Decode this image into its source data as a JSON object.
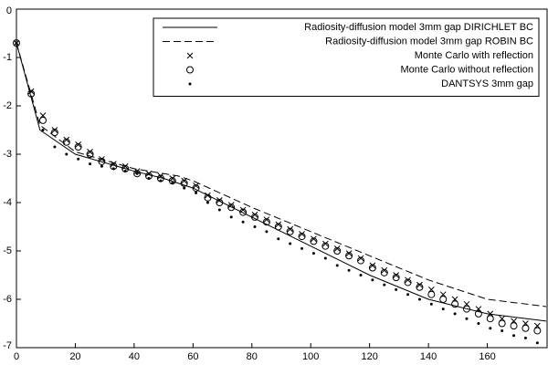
{
  "chart_data": {
    "type": "line",
    "xlim": [
      0,
      180
    ],
    "ylim": [
      -7,
      0
    ],
    "xticks": [
      0,
      20,
      40,
      60,
      80,
      100,
      120,
      140,
      160
    ],
    "yticks": [
      0,
      -1,
      -2,
      -3,
      -4,
      -5,
      -6,
      -7
    ],
    "legend": "upper right",
    "series": [
      {
        "name": "Radiosity-diffusion model 3mm gap DIRICHLET BC",
        "color": "#000000",
        "style": "solid",
        "x": [
          0,
          8,
          20,
          40,
          50,
          60,
          80,
          100,
          120,
          140,
          160,
          180
        ],
        "values": [
          -0.7,
          -2.5,
          -3.0,
          -3.35,
          -3.5,
          -3.7,
          -4.3,
          -4.9,
          -5.5,
          -6.0,
          -6.3,
          -6.45
        ]
      },
      {
        "name": "Radiosity-diffusion model 3mm gap ROBIN BC",
        "color": "#000000",
        "style": "dashed",
        "x": [
          0,
          8,
          20,
          40,
          55,
          60,
          80,
          100,
          120,
          140,
          160,
          180
        ],
        "values": [
          -0.7,
          -2.4,
          -2.95,
          -3.3,
          -3.45,
          -3.55,
          -4.1,
          -4.6,
          -5.1,
          -5.6,
          -6.0,
          -6.15
        ]
      },
      {
        "name": "Monte Carlo with reflection",
        "color": "#000000",
        "style": "x",
        "x": [
          0,
          5,
          9,
          13,
          17,
          21,
          25,
          29,
          33,
          37,
          41,
          45,
          49,
          53,
          57,
          61,
          65,
          69,
          73,
          77,
          81,
          85,
          89,
          93,
          97,
          101,
          105,
          109,
          113,
          117,
          121,
          125,
          129,
          133,
          137,
          141,
          145,
          149,
          153,
          157,
          161,
          165,
          169,
          173,
          177
        ],
        "values": [
          -0.7,
          -1.7,
          -2.2,
          -2.5,
          -2.7,
          -2.8,
          -2.95,
          -3.1,
          -3.2,
          -3.25,
          -3.35,
          -3.4,
          -3.45,
          -3.5,
          -3.55,
          -3.65,
          -3.85,
          -3.95,
          -4.05,
          -4.15,
          -4.25,
          -4.35,
          -4.45,
          -4.55,
          -4.65,
          -4.75,
          -4.85,
          -4.95,
          -5.05,
          -5.15,
          -5.3,
          -5.4,
          -5.5,
          -5.6,
          -5.7,
          -5.8,
          -5.9,
          -6.0,
          -6.1,
          -6.2,
          -6.3,
          -6.4,
          -6.45,
          -6.5,
          -6.55
        ]
      },
      {
        "name": "Monte Carlo without reflection",
        "color": "#000000",
        "style": "o",
        "x": [
          0,
          5,
          9,
          13,
          17,
          21,
          25,
          29,
          33,
          37,
          41,
          45,
          49,
          53,
          57,
          61,
          65,
          69,
          73,
          77,
          81,
          85,
          89,
          93,
          97,
          101,
          105,
          109,
          113,
          117,
          121,
          125,
          129,
          133,
          137,
          141,
          145,
          149,
          153,
          157,
          161,
          165,
          169,
          173,
          177
        ],
        "values": [
          -0.7,
          -1.75,
          -2.3,
          -2.55,
          -2.75,
          -2.85,
          -3.0,
          -3.15,
          -3.25,
          -3.3,
          -3.4,
          -3.45,
          -3.5,
          -3.55,
          -3.6,
          -3.7,
          -3.9,
          -4.0,
          -4.1,
          -4.2,
          -4.3,
          -4.4,
          -4.5,
          -4.6,
          -4.7,
          -4.8,
          -4.9,
          -5.0,
          -5.1,
          -5.2,
          -5.35,
          -5.45,
          -5.55,
          -5.65,
          -5.75,
          -5.9,
          -6.0,
          -6.1,
          -6.2,
          -6.3,
          -6.4,
          -6.5,
          -6.55,
          -6.6,
          -6.65
        ]
      },
      {
        "name": "DANTSYS 3mm gap",
        "color": "#000000",
        "style": "dot",
        "x": [
          0,
          5,
          9,
          13,
          17,
          21,
          25,
          29,
          33,
          37,
          41,
          45,
          49,
          53,
          57,
          61,
          65,
          69,
          73,
          77,
          81,
          85,
          89,
          93,
          97,
          101,
          105,
          109,
          113,
          117,
          121,
          125,
          129,
          133,
          137,
          141,
          145,
          149,
          153,
          157,
          161,
          165,
          169,
          173,
          177
        ],
        "values": [
          -0.7,
          -1.7,
          -2.5,
          -2.85,
          -3.0,
          -3.1,
          -3.2,
          -3.25,
          -3.3,
          -3.35,
          -3.4,
          -3.5,
          -3.55,
          -3.6,
          -3.7,
          -3.8,
          -4.0,
          -4.15,
          -4.3,
          -4.4,
          -4.5,
          -4.6,
          -4.75,
          -4.85,
          -4.95,
          -5.05,
          -5.15,
          -5.3,
          -5.4,
          -5.5,
          -5.6,
          -5.7,
          -5.8,
          -5.9,
          -6.0,
          -6.1,
          -6.2,
          -6.3,
          -6.4,
          -6.5,
          -6.6,
          -6.65,
          -6.75,
          -6.8,
          -6.9
        ]
      }
    ]
  }
}
